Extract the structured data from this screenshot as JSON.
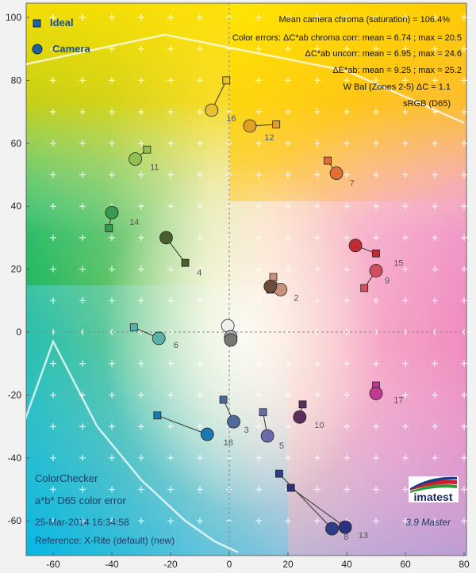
{
  "chart_data": {
    "type": "scatter",
    "title": "ColorChecker",
    "subtitle": "a*b* D65 color error",
    "xlim": [
      -70,
      80
    ],
    "ylim": [
      -70,
      105
    ],
    "x_ticks": [
      -60,
      -40,
      -20,
      0,
      20,
      40,
      60,
      80
    ],
    "y_ticks": [
      -60,
      -40,
      -20,
      0,
      20,
      40,
      60,
      80,
      100
    ],
    "grid": false,
    "legend": {
      "placement": "top-left",
      "entries": [
        {
          "label": "Ideal",
          "marker": "square",
          "color": "#1f5fa0"
        },
        {
          "label": "Camera",
          "marker": "circle",
          "color": "#1f5fa0"
        }
      ]
    },
    "stats": [
      "Mean camera chroma (saturation) = 106.4%",
      "Color errors: ΔC*ab chroma corr:  mean = 6.74 ;  max = 20.5",
      "ΔC*ab uncorr:  mean = 6.95 ;  max = 24.6",
      "ΔE*ab:  mean = 9.25 ;  max = 25.2",
      "W Bal (Zones 2-5) ΔC = 1.1",
      "sRGB (D65)"
    ],
    "info": {
      "date": "25-Mar-2014 16:34:58",
      "reference": "Reference: X-Rite (default) (new)",
      "version": "3.9  Master",
      "logo": "imatest"
    },
    "gamut_boundary": [
      [
        -70,
        85
      ],
      [
        -22,
        94.5
      ],
      [
        40,
        83
      ],
      [
        80,
        66.5
      ]
    ],
    "gamut_boundary_lower": [
      [
        -70,
        -29
      ],
      [
        -60,
        -3
      ],
      [
        -45,
        -30
      ],
      [
        -30,
        -47
      ],
      [
        -15,
        -60
      ],
      [
        -5,
        -66.5
      ],
      [
        3,
        -70
      ]
    ],
    "patches": [
      {
        "id": "2",
        "ideal": [
          15,
          17.5
        ],
        "camera": [
          17.5,
          13.5
        ],
        "color": "#c8917a"
      },
      {
        "id": "3",
        "ideal": [
          -2,
          -21.5
        ],
        "camera": [
          1.5,
          -28.5
        ],
        "color": "#4e6a9a"
      },
      {
        "id": "4",
        "ideal": [
          -15,
          22
        ],
        "camera": [
          -21.5,
          30
        ],
        "color": "#4a5e30"
      },
      {
        "id": "5",
        "ideal": [
          11.5,
          -25.5
        ],
        "camera": [
          13,
          -33
        ],
        "color": "#6a6aa8"
      },
      {
        "id": "6",
        "ideal": [
          -32.5,
          1.5
        ],
        "camera": [
          -24,
          -2
        ],
        "color": "#5ab0a8"
      },
      {
        "id": "7",
        "ideal": [
          33.5,
          54.5
        ],
        "camera": [
          36.5,
          50.5
        ],
        "color": "#e07030"
      },
      {
        "id": "8",
        "ideal": [
          17,
          -45
        ],
        "camera": [
          35,
          -62.5
        ],
        "color": "#2e3a8a"
      },
      {
        "id": "9",
        "ideal": [
          46,
          14
        ],
        "camera": [
          50,
          19.5
        ],
        "color": "#d05060"
      },
      {
        "id": "10",
        "ideal": [
          25,
          -23
        ],
        "camera": [
          24,
          -27
        ],
        "color": "#5a2e5e"
      },
      {
        "id": "11",
        "ideal": [
          -28,
          58
        ],
        "camera": [
          -32,
          55
        ],
        "color": "#90c050"
      },
      {
        "id": "12",
        "ideal": [
          16,
          66
        ],
        "camera": [
          7,
          65.5
        ],
        "color": "#e0a020"
      },
      {
        "id": "13",
        "ideal": [
          21,
          -49.5
        ],
        "camera": [
          39.5,
          -62
        ],
        "color": "#2a3280"
      },
      {
        "id": "14",
        "ideal": [
          -41,
          33
        ],
        "camera": [
          -40,
          38
        ],
        "color": "#3a9a50"
      },
      {
        "id": "15",
        "ideal": [
          50,
          25
        ],
        "camera": [
          43,
          27.5
        ],
        "color": "#c02a30"
      },
      {
        "id": "16",
        "ideal": [
          -1,
          80
        ],
        "camera": [
          -6,
          70.5
        ],
        "color": "#e8c030"
      },
      {
        "id": "17",
        "ideal": [
          50,
          -17
        ],
        "camera": [
          50,
          -19.5
        ],
        "color": "#c03a90"
      },
      {
        "id": "18",
        "ideal": [
          -24.5,
          -26.5
        ],
        "camera": [
          -7.5,
          -32.5
        ],
        "color": "#1a7ab0"
      },
      {
        "id": "1",
        "ideal": [
          14,
          13.5
        ],
        "camera": [
          14,
          14.5
        ],
        "color": "#6e4a38",
        "label": ""
      },
      {
        "id": "19",
        "ideal": [
          0,
          2
        ],
        "camera": [
          -0.5,
          2
        ],
        "color": "#f0f0f0",
        "label": ""
      },
      {
        "id": "22",
        "ideal": [
          0.5,
          -1.5
        ],
        "camera": [
          0.5,
          -1.5
        ],
        "color": "#b0b0b0",
        "label": ""
      },
      {
        "id": "24",
        "ideal": [
          0.5,
          -2
        ],
        "camera": [
          0.5,
          -2.5
        ],
        "color": "#777777",
        "label": ""
      }
    ],
    "label_positions": {
      "2": [
        22,
        11
      ],
      "3": [
        5,
        -31
      ],
      "4": [
        -11,
        19
      ],
      "5": [
        17,
        -36
      ],
      "6": [
        -19,
        -4
      ],
      "7": [
        41,
        47.5
      ],
      "8": [
        39,
        -65
      ],
      "9": [
        53,
        16.5
      ],
      "10": [
        29,
        -29.5
      ],
      "11": [
        -27,
        52.5
      ],
      "12": [
        12,
        62
      ],
      "13": [
        44,
        -64.5
      ],
      "14": [
        -34,
        35
      ],
      "15": [
        56,
        22
      ],
      "16": [
        -1,
        68
      ],
      "17": [
        56,
        -21.5
      ],
      "18": [
        -2,
        -35
      ]
    }
  }
}
